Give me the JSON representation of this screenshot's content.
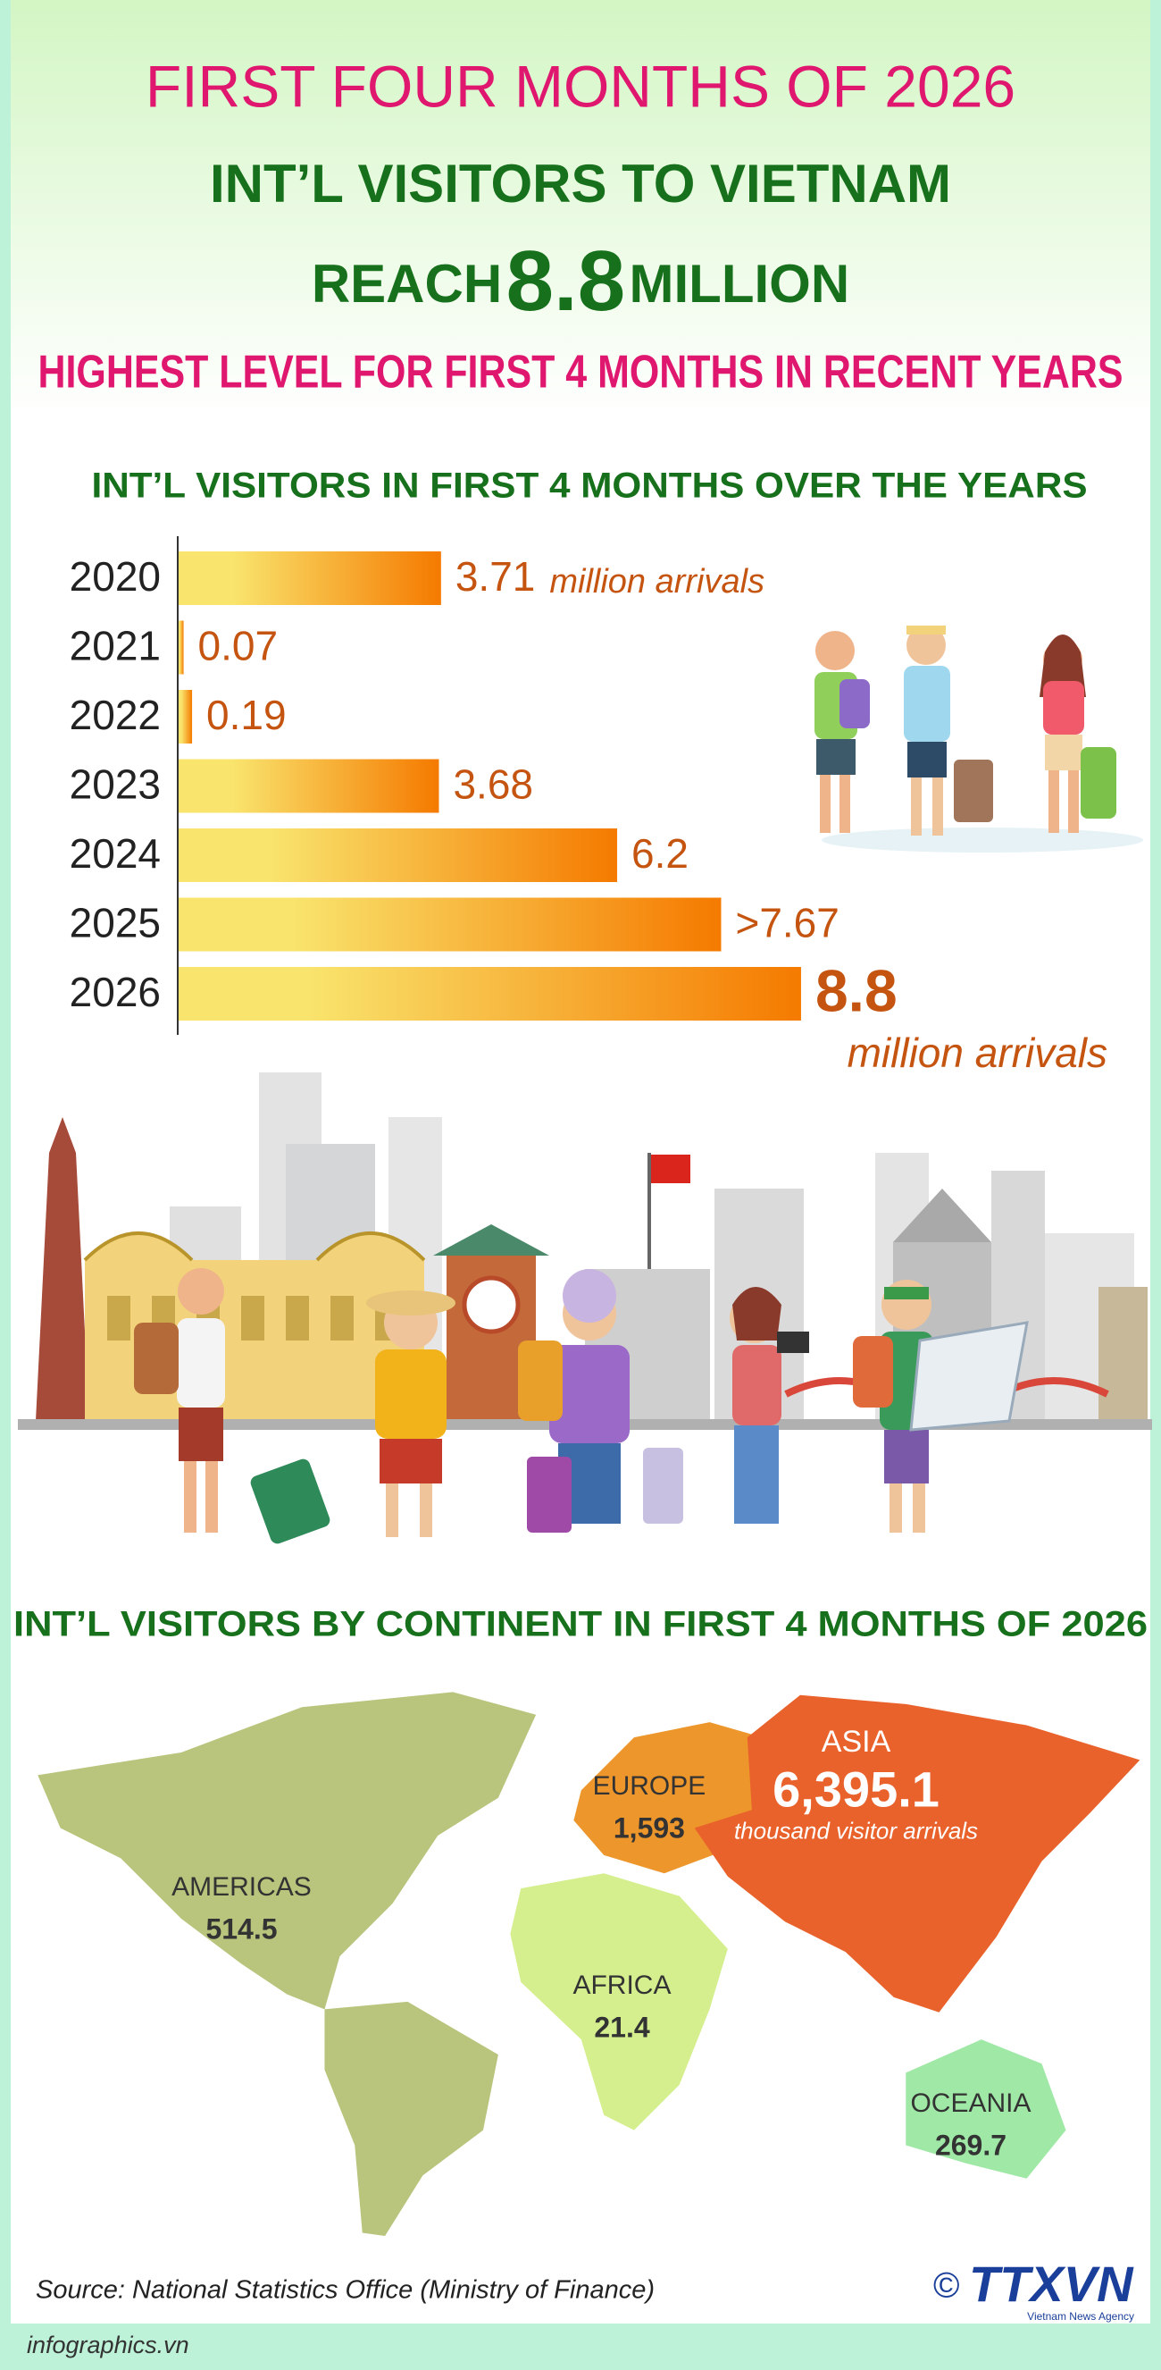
{
  "header": {
    "kicker": "FIRST FOUR MONTHS OF 2026",
    "headline": "INT’L VISITORS TO VIETNAM",
    "reach": "REACH",
    "figure": "8.8",
    "figure_unit": "MILLION",
    "subhead": "HIGHEST LEVEL FOR FIRST 4 MONTHS IN RECENT YEARS"
  },
  "chart_data": [
    {
      "type": "bar",
      "title": "INT’L VISITORS IN FIRST 4 MONTHS OVER THE YEARS",
      "categories": [
        "2020",
        "2021",
        "2022",
        "2023",
        "2024",
        "2025",
        "2026"
      ],
      "values": [
        3.71,
        0.07,
        0.19,
        3.68,
        6.2,
        7.67,
        8.8
      ],
      "value_labels": [
        "3.71",
        "0.07",
        "0.19",
        "3.68",
        "6.2",
        ">7.67",
        "8.8"
      ],
      "annotations": [
        "million arrivals",
        "million arrivals"
      ],
      "color": [
        "#f9e56e",
        "#f57a00"
      ],
      "label_color": "#c4540f",
      "xlim": [
        0,
        10
      ]
    },
    {
      "type": "map",
      "title": "INT’L VISITORS BY CONTINENT IN FIRST 4 MONTHS OF 2026",
      "categories": [
        "AMERICAS",
        "EUROPE",
        "ASIA",
        "AFRICA",
        "OCEANIA"
      ],
      "values": [
        514.5,
        1593,
        6395.1,
        21.4,
        269.7
      ],
      "value_labels": [
        "514.5",
        "1,593",
        "6,395.1",
        "21.4",
        "269.7"
      ],
      "unit_label": "thousand visitor arrivals",
      "colors": [
        "#b9c47c",
        "#ec962c",
        "#e9622b",
        "#d5ef8f",
        "#9fe8a5"
      ]
    }
  ],
  "source": "Source: National Statistics Office (Ministry of Finance)",
  "website": "infographics.vn",
  "logo": {
    "mark": "©",
    "text": "TTXVN",
    "subtitle": "Vietnam News Agency"
  }
}
